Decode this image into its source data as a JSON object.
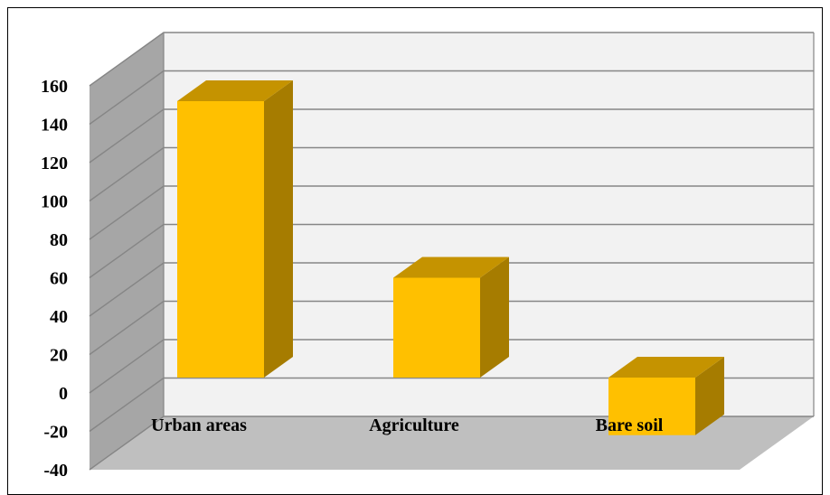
{
  "chart_data": {
    "type": "bar",
    "style": "3d-column",
    "title": "",
    "xlabel": "",
    "ylabel": "",
    "categories": [
      "Urban areas",
      "Agriculture",
      "Bare soil"
    ],
    "values": [
      144,
      52,
      -30
    ],
    "yticks": [
      "-40",
      "-20",
      "0",
      "20",
      "40",
      "60",
      "80",
      "100",
      "120",
      "140",
      "160"
    ],
    "ylim": [
      -40,
      160
    ],
    "grid": true,
    "legend": "none",
    "colors": {
      "bar_front": "#ffc000",
      "bar_top": "#c59300",
      "bar_side": "#a67c00",
      "back_wall": "#f2f2f2",
      "side_wall": "#a6a6a6",
      "floor": "#bfbfbf",
      "grid": "#868686"
    }
  }
}
